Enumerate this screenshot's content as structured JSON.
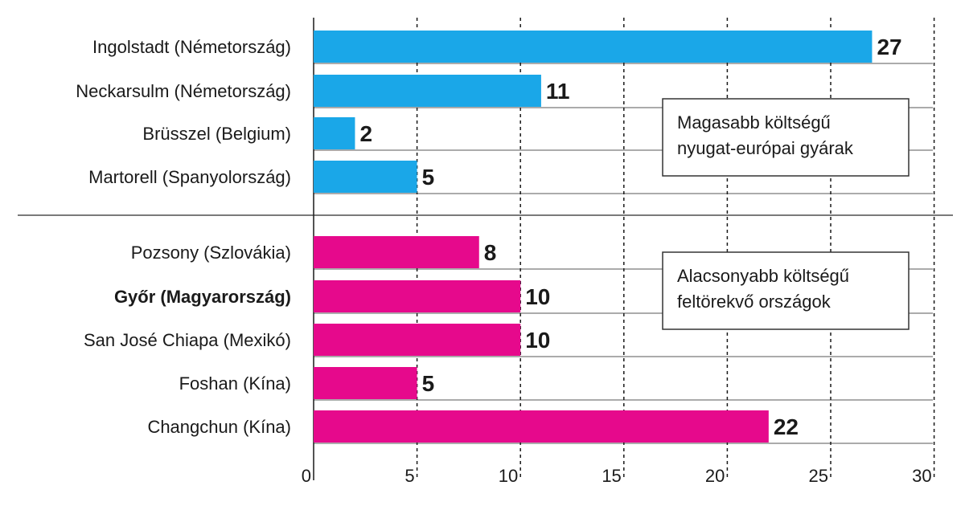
{
  "chart_data": {
    "type": "bar",
    "orientation": "horizontal",
    "groups": [
      {
        "label_lines": [
          "Magasabb költségű",
          "nyugat-európai gyárak"
        ],
        "color": "#1aa7e8",
        "categories": [
          "Ingolstadt (Németország)",
          "Neckarsulm (Németország)",
          "Brüsszel (Belgium)",
          "Martorell (Spanyolország)"
        ],
        "values": [
          27,
          11,
          2,
          5
        ],
        "value_labels": [
          "27",
          "11",
          "2",
          "5"
        ]
      },
      {
        "label_lines": [
          "Alacsonyabb költségű",
          "feltörekvő országok"
        ],
        "color": "#e6098c",
        "categories": [
          "Pozsony (Szlovákia)",
          "Győr (Magyarország)",
          "San José Chiapa (Mexikó)",
          "Foshan (Kína)",
          "Changchun (Kína)"
        ],
        "values": [
          8,
          10,
          10,
          5,
          22
        ],
        "value_labels": [
          "8",
          "10",
          "10",
          "5",
          "22"
        ],
        "highlight_category": "Győr (Magyarország)"
      }
    ],
    "x_ticks": [
      "0",
      "5",
      "10",
      "15",
      "20",
      "25",
      "30"
    ],
    "xlim": [
      0,
      30
    ],
    "grid": "vertical dashed"
  }
}
